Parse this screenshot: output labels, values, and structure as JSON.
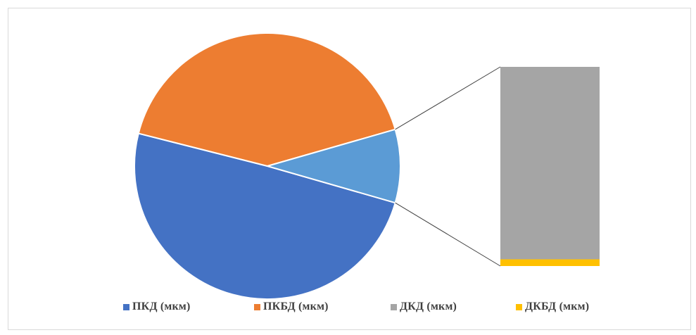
{
  "chart_data": {
    "type": "pie",
    "variant": "pie-of-bar",
    "legend_position": "bottom",
    "series": [
      {
        "name": "ПКД (мкм)",
        "value": 49.5,
        "color": "#4472C4"
      },
      {
        "name": "ПКБД (мкм)",
        "value": 41.6,
        "color": "#ED7D31"
      },
      {
        "name": "ДКД (мкм)",
        "value": 8.6,
        "color": "#A5A5A5"
      },
      {
        "name": "ДКБД (мкм)",
        "value": 0.3,
        "color": "#FFC000"
      }
    ],
    "secondary_total_color": "#5B9BD5",
    "secondary_bar_members": [
      "ДКД (мкм)",
      "ДКБД (мкм)"
    ]
  }
}
